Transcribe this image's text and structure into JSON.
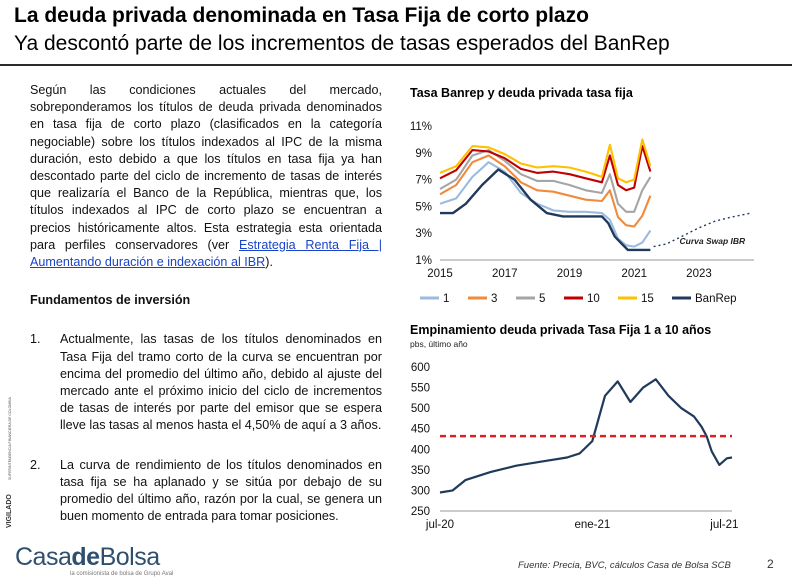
{
  "slide": {
    "title": "La deuda privada denominada en Tasa Fija de corto plazo",
    "subtitle": "Ya descontó parte de los incrementos de tasas esperados del BanRep",
    "intro_text": "Según las condiciones actuales del mercado, sobreponderamos los títulos de deuda privada denominados en tasa fija de corto plazo (clasificados en la categoría negociable) sobre los títulos indexados al IPC de la misma duración, esto debido a que los títulos en tasa fija ya han descontado parte del ciclo de incremento de tasas de interés que realizaría el Banco de la República, mientras que, los títulos indexados al IPC de corto plazo se encuentran a precios históricamente altos. Esta estrategia esta orientada para perfiles conservadores (ver ",
    "intro_link": "Estrategia Renta Fija | Aumentando duración e indexación al IBR",
    "intro_end": ").",
    "section_title": "Fundamentos de inversión",
    "items": [
      {
        "num": "1.",
        "text": "Actualmente, las tasas de los títulos denominados en Tasa Fija del tramo corto de la curva se encuentran por encima del promedio del último año, debido al ajuste del mercado ante el próximo inicio del ciclo de incrementos de tasas de interés por parte del emisor que se espera lleve las tasas al menos hasta el 4,50% de aquí a 3 años."
      },
      {
        "num": "2.",
        "text": "La curva de rendimiento de los títulos denominados en tasa fija se ha aplanado y se sitúa por debajo de su promedio del último año, razón por la cual, se genera un buen momento de entrada para tomar posiciones."
      }
    ],
    "vigilado_label": "VIGILADO",
    "vigilado_small": "SUPERINTENDENCIA FINANCIERA DE COLOMBIA",
    "logo": {
      "part1": "Casa",
      "part2": "de",
      "part3": "Bolsa",
      "tagline": "la comisionista de bolsa de Grupo Aval"
    },
    "source": "Fuente: Precia, BVC, cálculos Casa de Bolsa SCB",
    "page": "2"
  },
  "chart_data": [
    {
      "type": "line",
      "title": "Tasa Banrep y deuda privada tasa fija",
      "ylim": [
        1,
        11
      ],
      "xlim": [
        2015,
        2024.7
      ],
      "yticks": [
        "1%",
        "3%",
        "5%",
        "7%",
        "9%",
        "11%"
      ],
      "xticks": [
        "2015",
        "2017",
        "2019",
        "2021",
        "2023"
      ],
      "annotation": "Curva Swap IBR",
      "legend_position": "bottom",
      "series": [
        {
          "name": "1",
          "color": "#9bbbe0",
          "x": [
            2015.0,
            2015.5,
            2016.0,
            2016.5,
            2017.0,
            2017.5,
            2018.0,
            2018.5,
            2019.0,
            2019.5,
            2020.0,
            2020.25,
            2020.5,
            2020.75,
            2021.0,
            2021.25,
            2021.5
          ],
          "values": [
            5.2,
            5.6,
            7.2,
            8.3,
            7.6,
            6.0,
            5.2,
            4.7,
            4.6,
            4.6,
            4.5,
            4.0,
            2.6,
            2.1,
            2.0,
            2.3,
            3.2
          ]
        },
        {
          "name": "3",
          "color": "#f08a3c",
          "x": [
            2015.0,
            2015.5,
            2016.0,
            2016.5,
            2017.0,
            2017.5,
            2018.0,
            2018.5,
            2019.0,
            2019.5,
            2020.0,
            2020.25,
            2020.5,
            2020.75,
            2021.0,
            2021.25,
            2021.5
          ],
          "values": [
            5.9,
            6.6,
            8.3,
            8.8,
            8.0,
            6.8,
            6.2,
            6.1,
            5.8,
            5.5,
            5.4,
            6.2,
            4.2,
            3.6,
            3.5,
            4.3,
            5.8
          ]
        },
        {
          "name": "5",
          "color": "#a5a5a5",
          "x": [
            2015.0,
            2015.5,
            2016.0,
            2016.5,
            2017.0,
            2017.5,
            2018.0,
            2018.5,
            2019.0,
            2019.5,
            2020.0,
            2020.25,
            2020.5,
            2020.75,
            2021.0,
            2021.25,
            2021.5
          ],
          "values": [
            6.3,
            7.0,
            8.8,
            9.2,
            8.4,
            7.4,
            6.9,
            6.9,
            6.6,
            6.2,
            6.0,
            7.4,
            5.2,
            4.6,
            4.6,
            6.2,
            7.2
          ]
        },
        {
          "name": "10",
          "color": "#c00000",
          "x": [
            2015.0,
            2015.5,
            2016.0,
            2016.5,
            2017.0,
            2017.5,
            2018.0,
            2018.5,
            2019.0,
            2019.5,
            2020.0,
            2020.25,
            2020.5,
            2020.75,
            2021.0,
            2021.25,
            2021.5
          ],
          "values": [
            7.1,
            7.7,
            9.2,
            9.1,
            8.6,
            7.8,
            7.5,
            7.6,
            7.4,
            7.1,
            6.8,
            8.8,
            6.6,
            6.2,
            6.4,
            9.5,
            7.6
          ]
        },
        {
          "name": "15",
          "color": "#ffc000",
          "x": [
            2015.0,
            2015.5,
            2016.0,
            2016.5,
            2017.0,
            2017.5,
            2018.0,
            2018.5,
            2019.0,
            2019.5,
            2020.0,
            2020.25,
            2020.5,
            2020.75,
            2021.0,
            2021.25,
            2021.5
          ],
          "values": [
            7.5,
            8.0,
            9.5,
            9.4,
            8.9,
            8.2,
            7.9,
            8.0,
            7.9,
            7.6,
            7.2,
            9.6,
            7.1,
            6.8,
            7.0,
            10.0,
            8.0
          ]
        },
        {
          "name": "BanRep",
          "color": "#213a5c",
          "x": [
            2015.0,
            2015.4,
            2015.8,
            2016.3,
            2016.8,
            2017.3,
            2017.8,
            2018.3,
            2018.8,
            2019.5,
            2020.0,
            2020.2,
            2020.4,
            2020.6,
            2020.8,
            2021.5
          ],
          "values": [
            4.5,
            4.5,
            5.2,
            6.6,
            7.75,
            7.0,
            5.5,
            4.5,
            4.25,
            4.25,
            4.25,
            3.75,
            2.75,
            2.25,
            1.75,
            1.75
          ]
        }
      ],
      "swap_curve": {
        "x": [
          2021.6,
          2022.0,
          2022.5,
          2023.0,
          2023.5,
          2024.0,
          2024.6
        ],
        "values": [
          2.0,
          2.2,
          2.8,
          3.4,
          3.9,
          4.2,
          4.5
        ]
      }
    },
    {
      "type": "line",
      "title": "Empinamiento deuda privada Tasa Fija 1 a 10 años",
      "ylabel": "pbs, último año",
      "ylim": [
        250,
        600
      ],
      "yticks": [
        "250",
        "300",
        "350",
        "400",
        "450",
        "500",
        "550",
        "600"
      ],
      "xticks": [
        "jul-20",
        "ene-21",
        "jul-21"
      ],
      "average_line": 432,
      "series": [
        {
          "name": "",
          "color": "#213a5c",
          "x": [
            0,
            0.05,
            0.1,
            0.2,
            0.3,
            0.4,
            0.5,
            0.55,
            0.6,
            0.65,
            0.7,
            0.75,
            0.8,
            0.85,
            0.9,
            0.95,
            1.0,
            1.03,
            1.05,
            1.07,
            1.1,
            1.13,
            1.15
          ],
          "values": [
            295,
            300,
            325,
            345,
            360,
            370,
            380,
            390,
            420,
            530,
            565,
            515,
            550,
            570,
            530,
            500,
            480,
            455,
            432,
            395,
            362,
            378,
            380
          ]
        }
      ]
    }
  ]
}
